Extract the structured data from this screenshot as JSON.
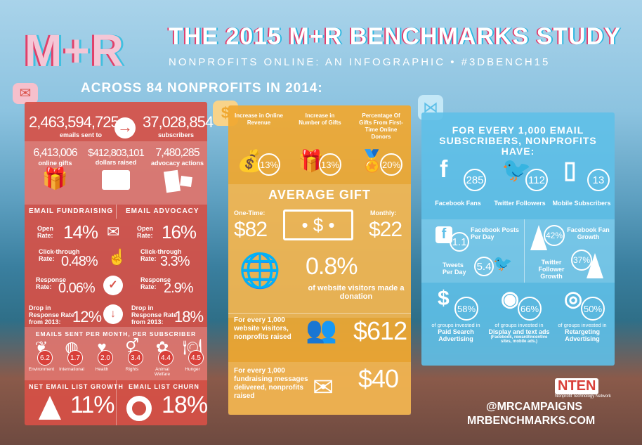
{
  "header": {
    "logo": "M+R",
    "title": "THE 2015 M+R BENCHMARKS STUDY",
    "subtitle": "NONPROFITS ONLINE: AN INFOGRAPHIC • #3DBENCH15",
    "across": "ACROSS 84 NONPROFITS IN 2014:"
  },
  "email": {
    "emails_sent": "2,463,594,725",
    "emails_sent_label": "emails sent to",
    "subscribers": "37,028,854",
    "subscribers_label": "subscribers",
    "stats": [
      {
        "value": "6,413,006",
        "label": "online gifts"
      },
      {
        "value": "$412,803,101",
        "label": "dollars raised"
      },
      {
        "value": "7,480,285",
        "label": "advocacy actions"
      }
    ],
    "fundraising_title": "EMAIL FUNDRAISING",
    "advocacy_title": "EMAIL ADVOCACY",
    "rows": [
      {
        "label": "Open Rate:",
        "fundraising": "14%",
        "advocacy": "16%"
      },
      {
        "label": "Click-through Rate:",
        "fundraising": "0.48%",
        "advocacy": "3.3%"
      },
      {
        "label": "Response Rate:",
        "fundraising": "0.06%",
        "advocacy": "2.9%"
      },
      {
        "label": "Drop in Response Rate from 2013:",
        "fundraising": "12%",
        "advocacy": "18%"
      }
    ],
    "per_month_title": "EMAILS SENT PER MONTH, PER SUBSCRIBER",
    "sectors": [
      {
        "label": "Environment",
        "value": "6.2"
      },
      {
        "label": "International",
        "value": "1.7"
      },
      {
        "label": "Health",
        "value": "2.0"
      },
      {
        "label": "Rights",
        "value": "3.4"
      },
      {
        "label": "Animal Welfare",
        "value": "4.4"
      },
      {
        "label": "Hunger",
        "value": "4.5"
      }
    ],
    "growth_title": "NET EMAIL LIST GROWTH",
    "growth": "11%",
    "churn_title": "EMAIL LIST CHURN",
    "churn": "18%"
  },
  "fundraising": {
    "top": [
      {
        "label": "Increase in Online Revenue",
        "value": "13%"
      },
      {
        "label": "Increase in Number of Gifts",
        "value": "13%"
      },
      {
        "label": "Percentage Of Gifts From First-Time Online Donors",
        "value": "20%"
      }
    ],
    "avg_title": "AVERAGE GIFT",
    "one_time_label": "One-Time:",
    "one_time": "$82",
    "monthly_label": "Monthly:",
    "monthly": "$22",
    "conversion": "0.8%",
    "conversion_label": "of website visitors made a donation",
    "per_visitors_label": "For every 1,000 website visitors, nonprofits raised",
    "per_visitors": "$612",
    "per_messages_label": "For every 1,000 fundraising messages delivered, nonprofits raised",
    "per_messages": "$40"
  },
  "social": {
    "title": "FOR EVERY 1,000 EMAIL SUBSCRIBERS, NONPROFITS HAVE:",
    "top": [
      {
        "value": "285",
        "label": "Facebook Fans"
      },
      {
        "value": "112",
        "label": "Twitter Followers"
      },
      {
        "value": "13",
        "label": "Mobile Subscribers"
      }
    ],
    "fb_posts": "1.1",
    "fb_posts_label": "Facebook Posts Per Day",
    "tweets": "5.4",
    "tweets_label": "Tweets Per Day",
    "fb_growth": "42%",
    "fb_growth_label": "Facebook Fan Growth",
    "tw_growth": "37%",
    "tw_growth_label": "Twitter Follower Growth",
    "ads": [
      {
        "value": "58%",
        "pre": "of groups invested in",
        "label": "Paid Search Advertising",
        "note": ""
      },
      {
        "value": "66%",
        "pre": "of groups invested in",
        "label": "Display and text ads",
        "note": "(Facebook, reward/incentive sites, mobile ads.)"
      },
      {
        "value": "50%",
        "pre": "of groups invested in",
        "label": "Retargeting Advertising",
        "note": ""
      }
    ]
  },
  "footer": {
    "nten": "NTEN",
    "nten_sub": "Nonprofit Technology Network",
    "handle": "@MRCAMPAIGNS",
    "site": "MRBENCHMARKS.COM"
  },
  "colors": {
    "red": "#d9534a",
    "orange": "#f0a830",
    "blue": "#5fc0e8"
  }
}
